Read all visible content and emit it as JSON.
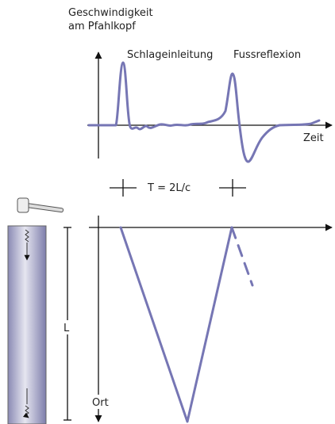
{
  "top_chart": {
    "y_label_lines": [
      "Geschwindigkeit",
      "am Pfahlkopf"
    ],
    "annotations": [
      "Schlageinleitung",
      "Fussreflexion"
    ],
    "x_label": "Zeit"
  },
  "period_label": "T = 2L/c",
  "bottom_chart": {
    "length_label": "L",
    "y_label": "Ort"
  }
}
